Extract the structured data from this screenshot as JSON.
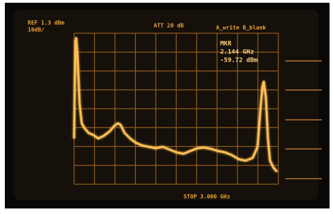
{
  "header": {
    "ref_level": "REF 1.3 dBm",
    "scale": "10dB/",
    "attenuation": "ATT 20 dB",
    "trace_mode": "A_write B_blank"
  },
  "marker": {
    "label": "MKR",
    "frequency": "2.144 GHz",
    "level": "-59.72 dBm"
  },
  "footer": {
    "stop": "STOP 3.000 GHz"
  }
}
